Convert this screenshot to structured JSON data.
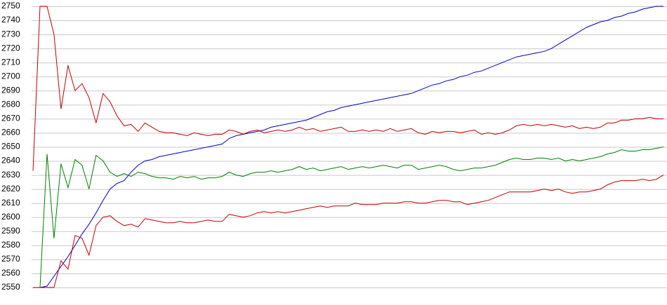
{
  "chart_data": {
    "type": "line",
    "ylim": [
      2550,
      2750
    ],
    "yticks": [
      2550,
      2560,
      2570,
      2580,
      2590,
      2600,
      2610,
      2620,
      2630,
      2640,
      2650,
      2660,
      2670,
      2680,
      2690,
      2700,
      2710,
      2720,
      2730,
      2740,
      2750
    ],
    "grid": true,
    "series": [
      {
        "color": "#0000c0",
        "values": [
          2550,
          2550,
          2551,
          2558,
          2565,
          2572,
          2580,
          2588,
          2595,
          2603,
          2612,
          2620,
          2624,
          2626,
          2632,
          2637,
          2640,
          2641,
          2643,
          2644,
          2645,
          2646,
          2647,
          2648,
          2649,
          2650,
          2651,
          2652,
          2656,
          2658,
          2659,
          2660,
          2661,
          2662,
          2664,
          2665,
          2666,
          2667,
          2668,
          2669,
          2671,
          2673,
          2675,
          2676,
          2678,
          2679,
          2680,
          2681,
          2682,
          2683,
          2684,
          2685,
          2686,
          2687,
          2688,
          2690,
          2692,
          2694,
          2695,
          2697,
          2698,
          2700,
          2701,
          2703,
          2704,
          2706,
          2708,
          2710,
          2712,
          2714,
          2715,
          2716,
          2717,
          2718,
          2720,
          2723,
          2726,
          2729,
          2732,
          2735,
          2737,
          2739,
          2740,
          2742,
          2743,
          2745,
          2746,
          2748,
          2749,
          2750,
          2750
        ]
      },
      {
        "color": "#c00000",
        "values": [
          2633,
          2750,
          2750,
          2730,
          2677,
          2708,
          2690,
          2695,
          2685,
          2667,
          2688,
          2682,
          2672,
          2665,
          2666,
          2661,
          2667,
          2664,
          2661,
          2660,
          2660,
          2659,
          2658,
          2660,
          2659,
          2658,
          2659,
          2659,
          2662,
          2661,
          2659,
          2661,
          2662,
          2660,
          2661,
          2662,
          2661,
          2662,
          2664,
          2662,
          2663,
          2661,
          2662,
          2663,
          2664,
          2661,
          2661,
          2662,
          2661,
          2662,
          2661,
          2663,
          2661,
          2662,
          2663,
          2660,
          2659,
          2661,
          2660,
          2661,
          2661,
          2660,
          2661,
          2662,
          2659,
          2660,
          2659,
          2660,
          2662,
          2665,
          2666,
          2665,
          2666,
          2665,
          2666,
          2665,
          2664,
          2665,
          2663,
          2664,
          2663,
          2664,
          2667,
          2667,
          2669,
          2669,
          2670,
          2670,
          2671,
          2670,
          2670
        ]
      },
      {
        "color": "#008000",
        "values": [
          2550,
          2550,
          2645,
          2585,
          2638,
          2621,
          2641,
          2637,
          2620,
          2644,
          2640,
          2632,
          2629,
          2631,
          2629,
          2632,
          2631,
          2629,
          2628,
          2628,
          2627,
          2629,
          2628,
          2629,
          2627,
          2628,
          2628,
          2629,
          2632,
          2630,
          2629,
          2631,
          2632,
          2632,
          2633,
          2632,
          2633,
          2634,
          2636,
          2634,
          2635,
          2633,
          2634,
          2635,
          2636,
          2634,
          2635,
          2636,
          2635,
          2636,
          2637,
          2636,
          2635,
          2637,
          2637,
          2634,
          2635,
          2636,
          2637,
          2636,
          2634,
          2633,
          2634,
          2635,
          2635,
          2636,
          2637,
          2639,
          2641,
          2642,
          2641,
          2641,
          2642,
          2642,
          2641,
          2642,
          2640,
          2641,
          2640,
          2641,
          2642,
          2643,
          2645,
          2646,
          2648,
          2647,
          2647,
          2648,
          2648,
          2649,
          2650
        ]
      },
      {
        "color": "#c00000",
        "values": [
          2550,
          2550,
          2550,
          2550,
          2569,
          2563,
          2587,
          2585,
          2573,
          2594,
          2600,
          2601,
          2597,
          2594,
          2595,
          2593,
          2599,
          2598,
          2597,
          2596,
          2596,
          2597,
          2596,
          2596,
          2597,
          2598,
          2597,
          2597,
          2602,
          2601,
          2600,
          2601,
          2603,
          2604,
          2603,
          2604,
          2603,
          2604,
          2605,
          2606,
          2607,
          2608,
          2607,
          2608,
          2608,
          2608,
          2610,
          2609,
          2609,
          2609,
          2610,
          2610,
          2610,
          2611,
          2611,
          2610,
          2610,
          2611,
          2612,
          2612,
          2611,
          2611,
          2609,
          2610,
          2611,
          2612,
          2614,
          2616,
          2618,
          2618,
          2618,
          2618,
          2619,
          2620,
          2619,
          2620,
          2618,
          2617,
          2618,
          2618,
          2619,
          2620,
          2623,
          2625,
          2626,
          2626,
          2626,
          2627,
          2626,
          2627,
          2630
        ]
      }
    ]
  }
}
